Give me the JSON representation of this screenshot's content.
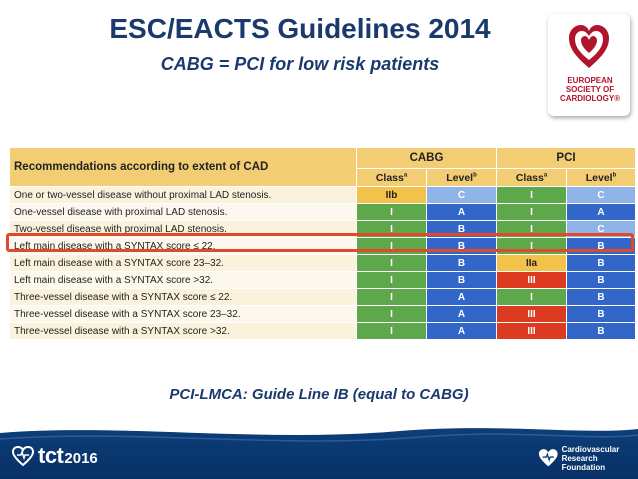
{
  "header": {
    "title": "ESC/EACTS Guidelines  2014",
    "subtitle": "CABG = PCI for low risk patients"
  },
  "logo": {
    "lines": [
      "EUROPEAN",
      "SOCIETY OF",
      "CARDIOLOGY®"
    ],
    "icon": "esc-heart-logo-icon"
  },
  "table": {
    "title": "Recommendations according to extent of CAD",
    "groups": [
      "CABG",
      "PCI"
    ],
    "subheaders": [
      "Class",
      "a",
      "Level",
      "b"
    ],
    "rows": [
      {
        "label": "One or two-vessel disease without  proximal  LAD stenosis.",
        "cabg_class": "IIb",
        "cabg_level": "C",
        "pci_class": "I",
        "pci_level": "C"
      },
      {
        "label": "One-vessel disease with proximal LAD stenosis.",
        "cabg_class": "I",
        "cabg_level": "A",
        "pci_class": "I",
        "pci_level": "A"
      },
      {
        "label": "Two-vessel disease with proximal LAD stenosis.",
        "cabg_class": "I",
        "cabg_level": "B",
        "pci_class": "I",
        "pci_level": "C"
      },
      {
        "label": "Left main disease with a SYNTAX score ≤ 22.",
        "cabg_class": "I",
        "cabg_level": "B",
        "pci_class": "I",
        "pci_level": "B"
      },
      {
        "label": "Left main disease with a SYNTAX score 23–32.",
        "cabg_class": "I",
        "cabg_level": "B",
        "pci_class": "IIa",
        "pci_level": "B"
      },
      {
        "label": "Left main disease with a SYNTAX score >32.",
        "cabg_class": "I",
        "cabg_level": "B",
        "pci_class": "III",
        "pci_level": "B"
      },
      {
        "label": "Three-vessel disease with a SYNTAX score ≤ 22.",
        "cabg_class": "I",
        "cabg_level": "A",
        "pci_class": "I",
        "pci_level": "B"
      },
      {
        "label": "Three-vessel disease with a SYNTAX score 23–32.",
        "cabg_class": "I",
        "cabg_level": "A",
        "pci_class": "III",
        "pci_level": "B"
      },
      {
        "label": "Three-vessel disease with a SYNTAX score >32.",
        "cabg_class": "I",
        "cabg_level": "A",
        "pci_class": "III",
        "pci_level": "B"
      }
    ]
  },
  "caption": "PCI-LMCA:  Guide Line IB (equal to CABG)",
  "footer": {
    "tct_word": "tct",
    "tct_year": "2016",
    "crf_lines": [
      "Cardiovascular",
      "Research Foundation"
    ]
  },
  "colors": {
    "title_blue": "#1a3a6e",
    "highlight_red": "#e0492a",
    "footer_blue": "#0d3f7a"
  }
}
